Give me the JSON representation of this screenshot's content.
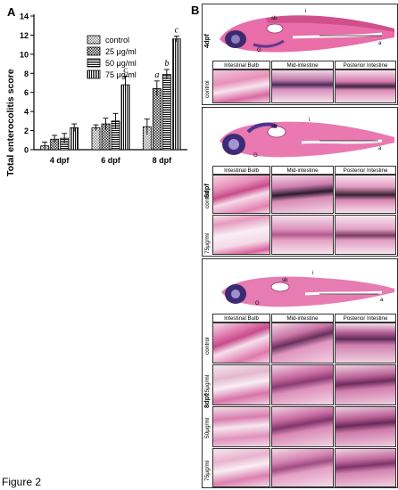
{
  "figure": {
    "caption": "Figure 2",
    "panel_a_letter": "A",
    "panel_b_letter": "B"
  },
  "chart_data": {
    "type": "bar",
    "title": "",
    "ylabel": "Total enterocolitis score",
    "xlabel": "",
    "ylim": [
      0,
      14
    ],
    "yticks": [
      0,
      2,
      4,
      6,
      8,
      10,
      12,
      14
    ],
    "categories": [
      "4 dpf",
      "6 dpf",
      "8 dpf"
    ],
    "legend_position": "top-right",
    "series": [
      {
        "name": "control",
        "values": [
          0.4,
          2.3,
          2.4
        ],
        "errors": [
          0.4,
          0.3,
          0.8
        ]
      },
      {
        "name": "25 μg/ml",
        "values": [
          1.1,
          2.7,
          6.4
        ],
        "errors": [
          0.4,
          0.6,
          0.8
        ]
      },
      {
        "name": "50 μg/ml",
        "values": [
          1.2,
          3.0,
          7.9
        ],
        "errors": [
          0.5,
          0.8,
          0.5
        ]
      },
      {
        "name": "75 μg/ml",
        "values": [
          2.3,
          6.8,
          11.6
        ],
        "errors": [
          0.4,
          0.9,
          0.3
        ]
      }
    ],
    "annotations": [
      {
        "text": "c",
        "category": "6 dpf",
        "series": "75 μg/ml"
      },
      {
        "text": "a",
        "category": "8 dpf",
        "series": "25 μg/ml"
      },
      {
        "text": "b",
        "category": "8 dpf",
        "series": "50 μg/ml"
      },
      {
        "text": "c",
        "category": "8 dpf",
        "series": "75 μg/ml"
      }
    ]
  },
  "panel_b": {
    "column_headers": [
      "Intestinal Bulb",
      "Mid-intestine",
      "Posterior Intestine"
    ],
    "fish_labels": {
      "sb": "sb",
      "a": "a",
      "g": "G",
      "i": "i"
    },
    "stages": [
      {
        "label": "4dpf",
        "rows": [
          "control"
        ]
      },
      {
        "label": "6dpf",
        "rows": [
          "control",
          "75μg/ml"
        ]
      },
      {
        "label": "8dpf",
        "rows": [
          "control",
          "25μg/ml",
          "50μg/ml",
          "75μg/ml"
        ]
      }
    ]
  }
}
